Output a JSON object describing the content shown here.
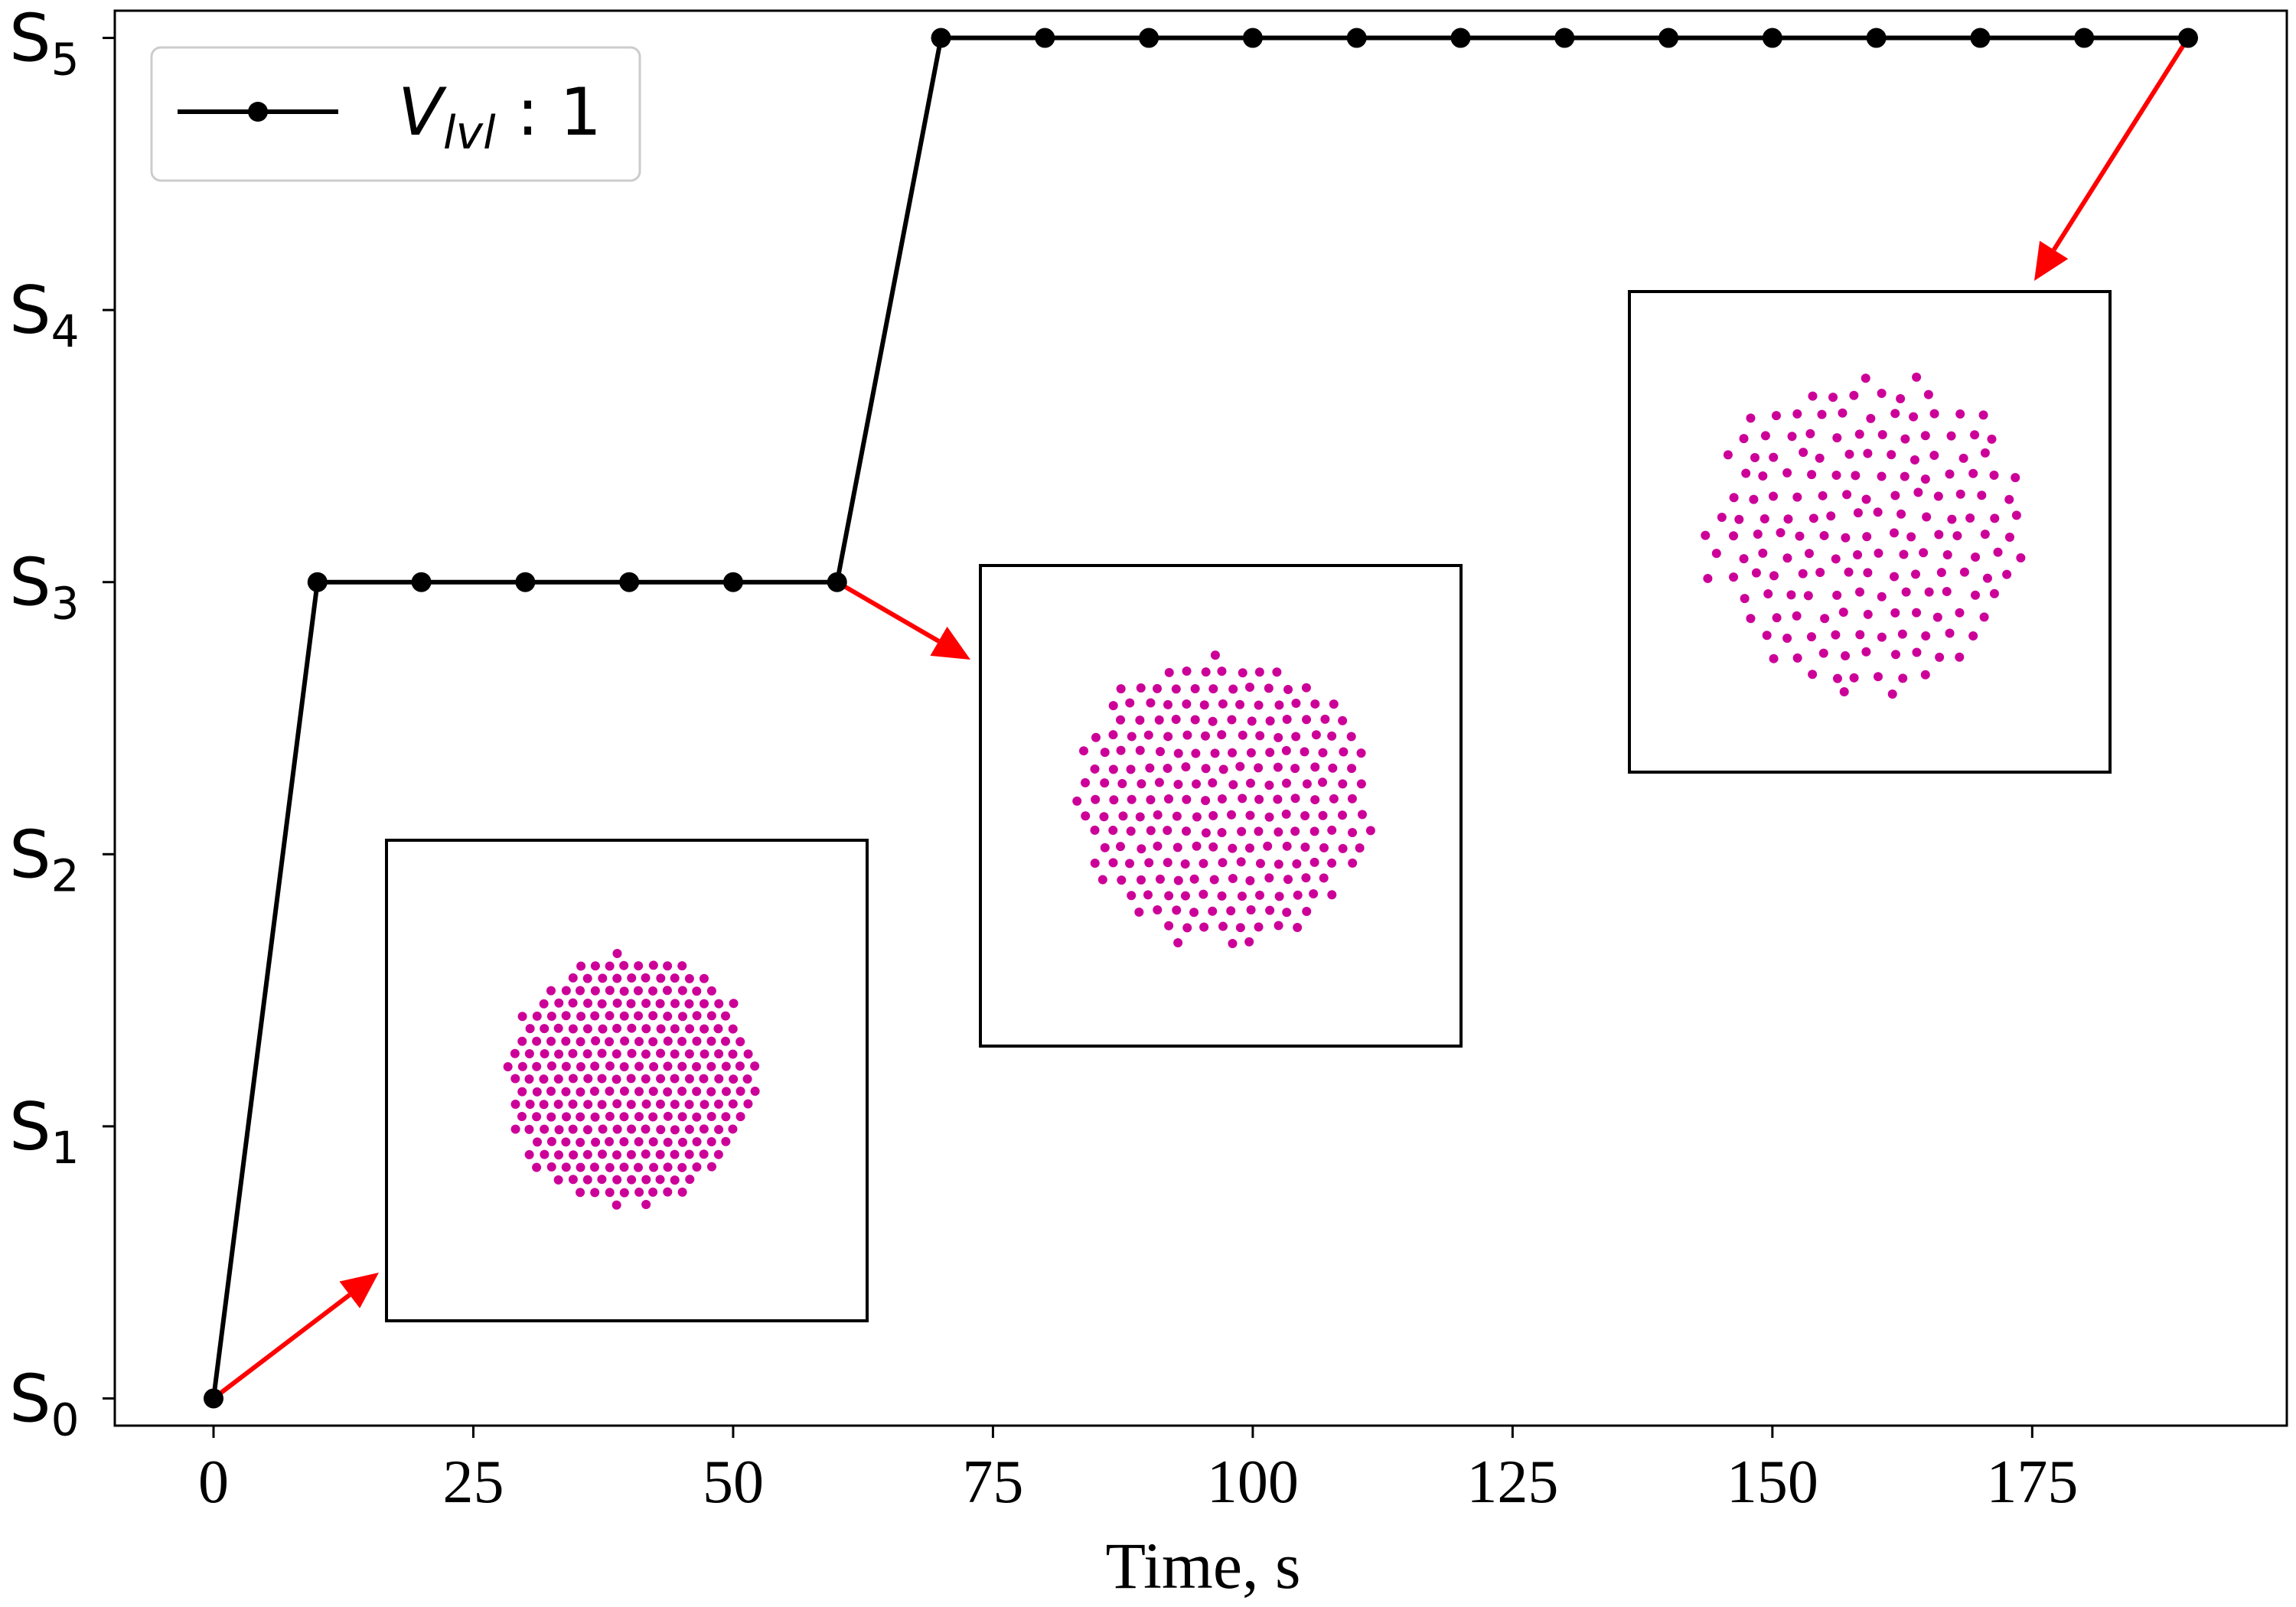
{
  "chart_data": {
    "type": "line",
    "xlabel": "Time, s",
    "ylabel": "",
    "x_ticks": [
      "0",
      "25",
      "50",
      "75",
      "100",
      "125",
      "150",
      "175"
    ],
    "x_tick_values": [
      0,
      25,
      50,
      75,
      100,
      125,
      150,
      175
    ],
    "xlim": [
      -9.5,
      199.5
    ],
    "y_ticks": [
      {
        "base": "S",
        "sub": "0",
        "value": 0
      },
      {
        "base": "S",
        "sub": "1",
        "value": 1
      },
      {
        "base": "S",
        "sub": "2",
        "value": 2
      },
      {
        "base": "S",
        "sub": "3",
        "value": 3
      },
      {
        "base": "S",
        "sub": "4",
        "value": 4
      },
      {
        "base": "S",
        "sub": "5",
        "value": 5
      }
    ],
    "ylim": [
      -0.1,
      5.1
    ],
    "grid": false,
    "legend_position": "top-left",
    "series": [
      {
        "name_base": "V",
        "name_sub": "lvl",
        "name_suffix": " : 1",
        "color": "#000000",
        "marker": "circle",
        "x": [
          0,
          10,
          20,
          30,
          40,
          50,
          60,
          70,
          80,
          90,
          100,
          110,
          120,
          130,
          140,
          150,
          160,
          170,
          180,
          190
        ],
        "y": [
          0,
          3,
          3,
          3,
          3,
          3,
          3,
          5,
          5,
          5,
          5,
          5,
          5,
          5,
          5,
          5,
          5,
          5,
          5,
          5
        ]
      }
    ],
    "annotations": {
      "arrow_color": "#ff0000",
      "dot_color": "#cc0099",
      "insets": [
        {
          "state": "formation snapshot at S0",
          "spread": "tight"
        },
        {
          "state": "formation snapshot at S3",
          "spread": "medium"
        },
        {
          "state": "formation snapshot at S5",
          "spread": "loose"
        }
      ]
    }
  }
}
